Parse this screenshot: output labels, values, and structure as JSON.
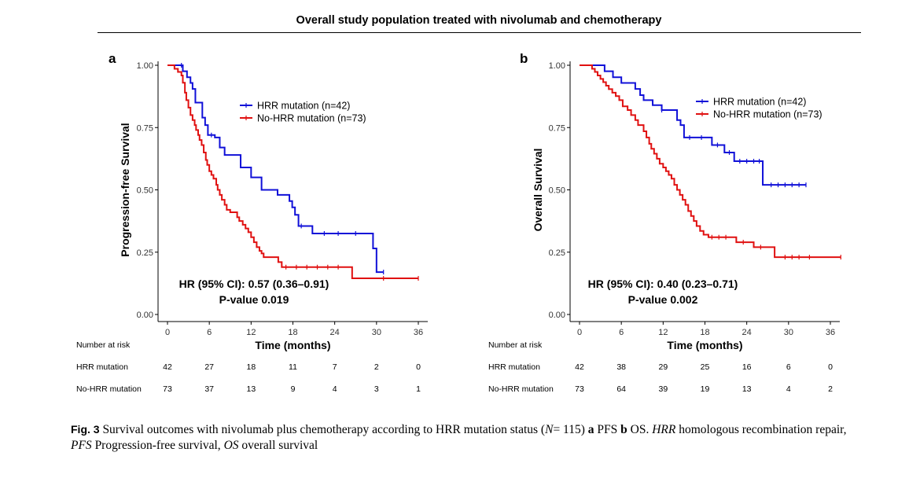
{
  "figure_title": "Overall study population treated with nivolumab and chemotherapy",
  "chart_data": [
    {
      "type": "line",
      "subtype": "kaplan-meier",
      "panel_label": "a",
      "ylabel": "Progression-free Survival",
      "xlabel": "Time (months)",
      "xlim": [
        0,
        36
      ],
      "ylim": [
        0,
        1
      ],
      "x_ticks": [
        "0",
        "6",
        "12",
        "18",
        "24",
        "30",
        "36"
      ],
      "y_ticks": [
        "0.00",
        "0.25",
        "0.50",
        "0.75",
        "1.00"
      ],
      "legend_position": "top-right",
      "annotation_hr": "HR (95% CI): 0.57 (0.36–0.91)",
      "annotation_p": "P-value 0.019",
      "series": [
        {
          "name": "HRR mutation (n=42)",
          "color": "#1010d8",
          "steps": [
            [
              0,
              1.0
            ],
            [
              2.2,
              0.976
            ],
            [
              2.8,
              0.952
            ],
            [
              3.3,
              0.929
            ],
            [
              3.6,
              0.905
            ],
            [
              4.0,
              0.85
            ],
            [
              5.0,
              0.79
            ],
            [
              5.4,
              0.76
            ],
            [
              5.8,
              0.72
            ],
            [
              6.8,
              0.71
            ],
            [
              7.5,
              0.67
            ],
            [
              8.2,
              0.64
            ],
            [
              10.5,
              0.59
            ],
            [
              12.0,
              0.55
            ],
            [
              13.5,
              0.5
            ],
            [
              15.8,
              0.48
            ],
            [
              17.5,
              0.455
            ],
            [
              17.9,
              0.43
            ],
            [
              18.3,
              0.4
            ],
            [
              18.8,
              0.355
            ],
            [
              20.8,
              0.325
            ],
            [
              29.5,
              0.265
            ],
            [
              30.0,
              0.17
            ],
            [
              31.0,
              0.17
            ]
          ],
          "censor": [
            [
              2.0,
              1.0
            ],
            [
              6.3,
              0.72
            ],
            [
              19.2,
              0.355
            ],
            [
              22.5,
              0.325
            ],
            [
              24.5,
              0.325
            ],
            [
              27.0,
              0.325
            ],
            [
              31.0,
              0.17
            ]
          ]
        },
        {
          "name": "No-HRR mutation (n=73)",
          "color": "#e01010",
          "steps": [
            [
              0,
              1.0
            ],
            [
              1.0,
              0.986
            ],
            [
              1.5,
              0.973
            ],
            [
              2.0,
              0.959
            ],
            [
              2.2,
              0.93
            ],
            [
              2.5,
              0.89
            ],
            [
              2.7,
              0.86
            ],
            [
              3.0,
              0.83
            ],
            [
              3.3,
              0.8
            ],
            [
              3.6,
              0.78
            ],
            [
              3.9,
              0.76
            ],
            [
              4.1,
              0.74
            ],
            [
              4.4,
              0.72
            ],
            [
              4.6,
              0.7
            ],
            [
              4.9,
              0.68
            ],
            [
              5.2,
              0.65
            ],
            [
              5.5,
              0.62
            ],
            [
              5.7,
              0.6
            ],
            [
              6.0,
              0.575
            ],
            [
              6.3,
              0.56
            ],
            [
              6.6,
              0.545
            ],
            [
              7.0,
              0.52
            ],
            [
              7.2,
              0.5
            ],
            [
              7.5,
              0.48
            ],
            [
              7.8,
              0.46
            ],
            [
              8.2,
              0.44
            ],
            [
              8.5,
              0.42
            ],
            [
              9.0,
              0.41
            ],
            [
              10.0,
              0.39
            ],
            [
              10.3,
              0.375
            ],
            [
              10.8,
              0.36
            ],
            [
              11.2,
              0.345
            ],
            [
              11.6,
              0.33
            ],
            [
              12.0,
              0.31
            ],
            [
              12.4,
              0.29
            ],
            [
              12.8,
              0.27
            ],
            [
              13.2,
              0.255
            ],
            [
              13.5,
              0.245
            ],
            [
              13.8,
              0.23
            ],
            [
              15.6,
              0.23
            ],
            [
              15.9,
              0.21
            ],
            [
              16.4,
              0.19
            ],
            [
              26.5,
              0.145
            ],
            [
              36.0,
              0.145
            ]
          ],
          "censor": [
            [
              17.0,
              0.19
            ],
            [
              18.5,
              0.19
            ],
            [
              20.0,
              0.19
            ],
            [
              21.5,
              0.19
            ],
            [
              23.0,
              0.19
            ],
            [
              24.5,
              0.19
            ],
            [
              31.0,
              0.145
            ],
            [
              36.0,
              0.145
            ]
          ]
        }
      ],
      "risk_table": {
        "title": "Number at risk",
        "times": [
          "0",
          "6",
          "12",
          "18",
          "24",
          "30",
          "36"
        ],
        "rows": [
          {
            "label": "HRR mutation",
            "values": [
              "42",
              "27",
              "18",
              "11",
              "7",
              "2",
              "0"
            ]
          },
          {
            "label": "No-HRR mutation",
            "values": [
              "73",
              "37",
              "13",
              "9",
              "4",
              "3",
              "1"
            ]
          }
        ]
      }
    },
    {
      "type": "line",
      "subtype": "kaplan-meier",
      "panel_label": "b",
      "ylabel": "Overall Survival",
      "xlabel": "Time (months)",
      "xlim": [
        0,
        36
      ],
      "ylim": [
        0,
        1
      ],
      "x_ticks": [
        "0",
        "6",
        "12",
        "18",
        "24",
        "30",
        "36"
      ],
      "y_ticks": [
        "0.00",
        "0.25",
        "0.50",
        "0.75",
        "1.00"
      ],
      "legend_position": "top-right",
      "annotation_hr": "HR (95% CI): 0.40 (0.23–0.71)",
      "annotation_p": "P-value 0.002",
      "series": [
        {
          "name": "HRR mutation (n=42)",
          "color": "#1010d8",
          "steps": [
            [
              0,
              1.0
            ],
            [
              3.6,
              0.976
            ],
            [
              4.8,
              0.952
            ],
            [
              6.0,
              0.929
            ],
            [
              8.0,
              0.905
            ],
            [
              8.7,
              0.88
            ],
            [
              9.2,
              0.86
            ],
            [
              10.5,
              0.84
            ],
            [
              11.8,
              0.82
            ],
            [
              14.0,
              0.78
            ],
            [
              14.5,
              0.76
            ],
            [
              15.0,
              0.71
            ],
            [
              19.0,
              0.68
            ],
            [
              20.8,
              0.65
            ],
            [
              22.2,
              0.615
            ],
            [
              26.3,
              0.52
            ],
            [
              32.5,
              0.52
            ]
          ],
          "censor": [
            [
              11.8,
              0.82
            ],
            [
              15.8,
              0.71
            ],
            [
              17.5,
              0.71
            ],
            [
              19.8,
              0.68
            ],
            [
              21.5,
              0.65
            ],
            [
              23.0,
              0.615
            ],
            [
              24.0,
              0.615
            ],
            [
              25.0,
              0.615
            ],
            [
              25.8,
              0.615
            ],
            [
              27.5,
              0.52
            ],
            [
              28.5,
              0.52
            ],
            [
              29.5,
              0.52
            ],
            [
              30.5,
              0.52
            ],
            [
              31.5,
              0.52
            ],
            [
              32.5,
              0.52
            ]
          ]
        },
        {
          "name": "No-HRR mutation (n=73)",
          "color": "#e01010",
          "steps": [
            [
              0,
              1.0
            ],
            [
              1.8,
              0.986
            ],
            [
              2.2,
              0.973
            ],
            [
              2.6,
              0.959
            ],
            [
              3.0,
              0.945
            ],
            [
              3.4,
              0.932
            ],
            [
              3.8,
              0.918
            ],
            [
              4.2,
              0.904
            ],
            [
              4.7,
              0.89
            ],
            [
              5.2,
              0.876
            ],
            [
              5.7,
              0.86
            ],
            [
              6.2,
              0.835
            ],
            [
              6.9,
              0.82
            ],
            [
              7.4,
              0.8
            ],
            [
              8.0,
              0.78
            ],
            [
              8.4,
              0.76
            ],
            [
              9.2,
              0.735
            ],
            [
              9.6,
              0.71
            ],
            [
              10.0,
              0.685
            ],
            [
              10.3,
              0.665
            ],
            [
              10.7,
              0.645
            ],
            [
              11.1,
              0.625
            ],
            [
              11.5,
              0.605
            ],
            [
              12.0,
              0.59
            ],
            [
              12.4,
              0.575
            ],
            [
              12.8,
              0.56
            ],
            [
              13.2,
              0.545
            ],
            [
              13.6,
              0.52
            ],
            [
              14.0,
              0.5
            ],
            [
              14.4,
              0.48
            ],
            [
              14.8,
              0.46
            ],
            [
              15.2,
              0.44
            ],
            [
              15.6,
              0.415
            ],
            [
              16.0,
              0.395
            ],
            [
              16.4,
              0.375
            ],
            [
              16.8,
              0.355
            ],
            [
              17.3,
              0.335
            ],
            [
              17.8,
              0.32
            ],
            [
              18.5,
              0.31
            ],
            [
              22.5,
              0.29
            ],
            [
              25.0,
              0.27
            ],
            [
              28.0,
              0.23
            ],
            [
              37.5,
              0.23
            ]
          ],
          "censor": [
            [
              19.0,
              0.31
            ],
            [
              20.0,
              0.31
            ],
            [
              21.0,
              0.31
            ],
            [
              23.5,
              0.29
            ],
            [
              26.0,
              0.27
            ],
            [
              29.5,
              0.23
            ],
            [
              30.5,
              0.23
            ],
            [
              31.5,
              0.23
            ],
            [
              33.0,
              0.23
            ],
            [
              37.5,
              0.23
            ]
          ]
        }
      ],
      "risk_table": {
        "title": "Number at risk",
        "times": [
          "0",
          "6",
          "12",
          "18",
          "24",
          "30",
          "36"
        ],
        "rows": [
          {
            "label": "HRR mutation",
            "values": [
              "42",
              "38",
              "29",
              "25",
              "16",
              "6",
              "0"
            ]
          },
          {
            "label": "No-HRR mutation",
            "values": [
              "73",
              "64",
              "39",
              "19",
              "13",
              "4",
              "2"
            ]
          }
        ]
      }
    }
  ],
  "caption": {
    "label": "Fig. 3",
    "text_1": "Survival outcomes with nivolumab plus chemotherapy according to HRR mutation status (",
    "n_var": "N",
    "text_2": "= 115) ",
    "panel_a": "a",
    "text_3": " PFS ",
    "panel_b": "b",
    "text_4": " OS. ",
    "abbr_1": "HRR",
    "text_5": " homologous recombination repair, ",
    "abbr_2": "PFS",
    "text_6": " Progression-free survival, ",
    "abbr_3": "OS",
    "text_7": " overall survival"
  }
}
